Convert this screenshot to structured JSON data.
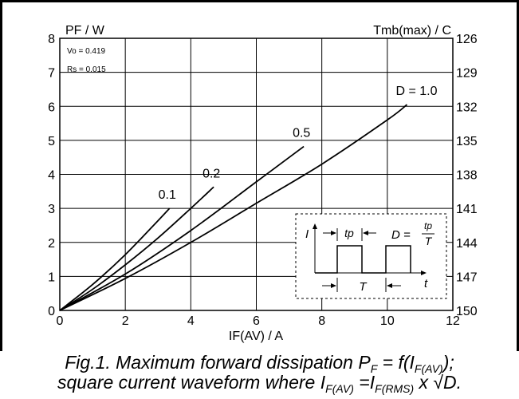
{
  "chart_data": {
    "type": "line",
    "left_axis": {
      "label": "PF / W",
      "range": [
        0,
        8
      ],
      "ticks": [
        "0",
        "1",
        "2",
        "3",
        "4",
        "5",
        "6",
        "7",
        "8"
      ]
    },
    "right_axis": {
      "label": "Tmb(max) / C",
      "range": [
        150,
        126
      ],
      "ticks": [
        "150",
        "147",
        "144",
        "141",
        "138",
        "135",
        "132",
        "129",
        "126"
      ]
    },
    "x_axis": {
      "label": "IF(AV) / A",
      "range": [
        0,
        12
      ],
      "ticks": [
        "0",
        "2",
        "4",
        "6",
        "8",
        "10",
        "12"
      ]
    },
    "grid": true,
    "parameters": [
      "Vo = 0.419",
      "Rs = 0.015"
    ],
    "series": [
      {
        "name": "0.1",
        "x": [
          0,
          1,
          2,
          3,
          3.35
        ],
        "y": [
          0,
          0.76,
          1.64,
          2.64,
          3.0
        ]
      },
      {
        "name": "0.2",
        "x": [
          0,
          1,
          2,
          3,
          4,
          4.7
        ],
        "y": [
          0,
          0.62,
          1.34,
          2.13,
          3.0,
          3.63
        ]
      },
      {
        "name": "0.5",
        "x": [
          0,
          2,
          4,
          6,
          7.45
        ],
        "y": [
          0,
          1.07,
          2.35,
          3.78,
          4.82
        ]
      },
      {
        "name": "D = 1.0",
        "x": [
          0,
          2,
          4,
          6,
          8,
          10,
          10.6
        ],
        "y": [
          0,
          0.94,
          2.0,
          3.15,
          4.3,
          5.6,
          6.05
        ]
      }
    ],
    "inset": {
      "y_label": "I",
      "x_label": "t",
      "pulse_width_label": "tp",
      "period_label": "T",
      "duty_formula": {
        "lhs": "D =",
        "numerator": "tp",
        "denominator": "T"
      }
    }
  },
  "caption": {
    "line1": {
      "prefix": "Fig.1.   Maximum forward dissipation P",
      "sub1": "F",
      "mid": " = f(I",
      "sub2": "F(AV)",
      "suffix": ");"
    },
    "line2": {
      "prefix": "square current waveform where I",
      "sub1": "F(AV)",
      "mid": " =I",
      "sub2": "F(RMS)",
      "suffix": " x ",
      "radical": "√",
      "tail": "D."
    }
  }
}
